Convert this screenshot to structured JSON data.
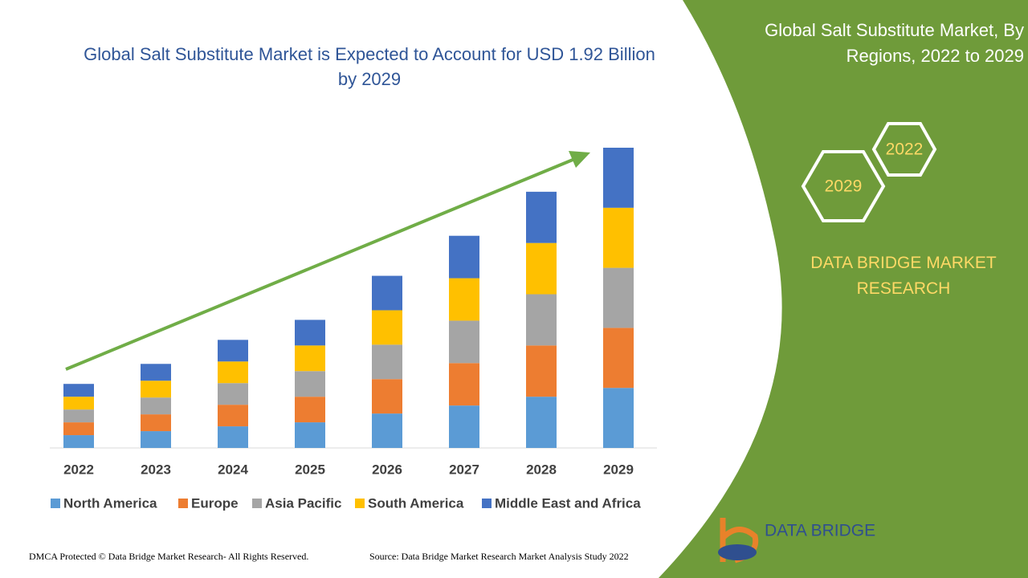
{
  "chart_data": {
    "type": "bar",
    "stacked": true,
    "title": "Global Salt Substitute Market is Expected to Account for USD 1.92 Billion by 2029",
    "categories": [
      "2022",
      "2023",
      "2024",
      "2025",
      "2026",
      "2027",
      "2028",
      "2029"
    ],
    "series": [
      {
        "name": "North America",
        "color": "#5b9bd5",
        "values": [
          16,
          21,
          27,
          32,
          43,
          53,
          64,
          75
        ]
      },
      {
        "name": "Europe",
        "color": "#ed7d31",
        "values": [
          16,
          21,
          27,
          32,
          43,
          53,
          64,
          75
        ]
      },
      {
        "name": "Asia Pacific",
        "color": "#a5a5a5",
        "values": [
          16,
          21,
          27,
          32,
          43,
          53,
          64,
          75
        ]
      },
      {
        "name": "South America",
        "color": "#ffc000",
        "values": [
          16,
          21,
          27,
          32,
          43,
          53,
          64,
          75
        ]
      },
      {
        "name": "Middle East and Africa",
        "color": "#4472c4",
        "values": [
          16,
          21,
          27,
          32,
          43,
          53,
          64,
          75
        ]
      }
    ],
    "legend": "bottom"
  },
  "side_panel": {
    "title": "Global Salt Substitute Market, By Regions, 2022 to 2029",
    "hexagons": [
      "2022",
      "2029"
    ],
    "brand": "DATA BRIDGE MARKET RESEARCH"
  },
  "logo": {
    "text": "DATA BRIDGE"
  },
  "footer": {
    "copyright": "DMCA Protected © Data Bridge Market Research- All Rights Reserved.",
    "source": "Source: Data Bridge Market Research Market Analysis Study 2022"
  }
}
